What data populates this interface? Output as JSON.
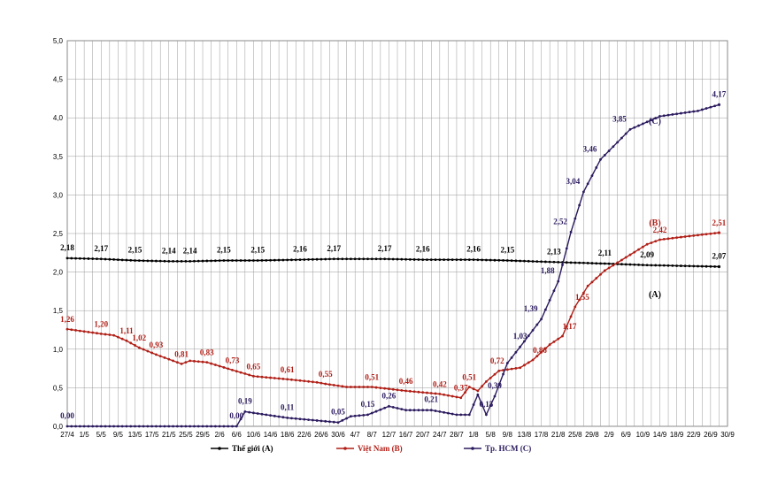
{
  "chart_data": {
    "type": "line",
    "title": "",
    "xlabel": "",
    "ylabel": "",
    "ylim": [
      0,
      5
    ],
    "y_ticks": [
      "0,0",
      "0,5",
      "1,0",
      "1,5",
      "2,0",
      "2,5",
      "3,0",
      "3,5",
      "4,0",
      "4,5",
      "5,0"
    ],
    "x_tick_labels": [
      "27/4",
      "1/5",
      "5/5",
      "9/5",
      "13/5",
      "17/5",
      "21/5",
      "25/5",
      "29/5",
      "2/6",
      "6/6",
      "10/6",
      "14/6",
      "18/6",
      "22/6",
      "26/6",
      "30/6",
      "4/7",
      "8/7",
      "12/7",
      "16/7",
      "20/7",
      "24/7",
      "28/7",
      "1/8",
      "5/8",
      "9/8",
      "13/8",
      "17/8",
      "21/8",
      "25/8",
      "29/8",
      "2/9",
      "6/9",
      "10/9",
      "14/9",
      "18/9",
      "22/9",
      "26/9",
      "30/9"
    ],
    "x_range_days": [
      0,
      156
    ],
    "grid": true,
    "legend_position": "bottom",
    "series": [
      {
        "name": "Thế giới (A)",
        "tag": "(A)",
        "color": "#000000",
        "points": [
          {
            "day": 0,
            "value": 2.18,
            "label": "2,18"
          },
          {
            "day": 8,
            "value": 2.17,
            "label": "2,17"
          },
          {
            "day": 16,
            "value": 2.15,
            "label": "2,15"
          },
          {
            "day": 24,
            "value": 2.14,
            "label": "2,14"
          },
          {
            "day": 29,
            "value": 2.14,
            "label": "2,14"
          },
          {
            "day": 37,
            "value": 2.15,
            "label": "2,15"
          },
          {
            "day": 45,
            "value": 2.15,
            "label": "2,15"
          },
          {
            "day": 55,
            "value": 2.16,
            "label": "2,16"
          },
          {
            "day": 63,
            "value": 2.17,
            "label": "2,17"
          },
          {
            "day": 75,
            "value": 2.17,
            "label": "2,17"
          },
          {
            "day": 84,
            "value": 2.16,
            "label": "2,16"
          },
          {
            "day": 96,
            "value": 2.16,
            "label": "2,16"
          },
          {
            "day": 104,
            "value": 2.15,
            "label": "2,15"
          },
          {
            "day": 115,
            "value": 2.13,
            "label": "2,13"
          },
          {
            "day": 127,
            "value": 2.11,
            "label": "2,11"
          },
          {
            "day": 137,
            "value": 2.09,
            "label": "2,09"
          },
          {
            "day": 154,
            "value": 2.07,
            "label": "2,07"
          }
        ]
      },
      {
        "name": "Việt Nam (B)",
        "tag": "(B)",
        "color": "#b01e16",
        "points": [
          {
            "day": 0,
            "value": 1.26,
            "label": "1,26"
          },
          {
            "day": 4,
            "value": 1.23,
            "label": ""
          },
          {
            "day": 8,
            "value": 1.2,
            "label": "1,20"
          },
          {
            "day": 11,
            "value": 1.18,
            "label": ""
          },
          {
            "day": 14,
            "value": 1.11,
            "label": "1,11"
          },
          {
            "day": 17,
            "value": 1.02,
            "label": "1,02"
          },
          {
            "day": 21,
            "value": 0.93,
            "label": "0,93"
          },
          {
            "day": 27,
            "value": 0.81,
            "label": "0,81"
          },
          {
            "day": 29,
            "value": 0.85,
            "label": ""
          },
          {
            "day": 33,
            "value": 0.83,
            "label": "0,83"
          },
          {
            "day": 39,
            "value": 0.73,
            "label": "0,73"
          },
          {
            "day": 44,
            "value": 0.65,
            "label": "0,65"
          },
          {
            "day": 52,
            "value": 0.61,
            "label": "0,61"
          },
          {
            "day": 59,
            "value": 0.57,
            "label": ""
          },
          {
            "day": 61,
            "value": 0.55,
            "label": "0,55"
          },
          {
            "day": 66,
            "value": 0.51,
            "label": ""
          },
          {
            "day": 72,
            "value": 0.51,
            "label": "0,51"
          },
          {
            "day": 80,
            "value": 0.46,
            "label": "0,46"
          },
          {
            "day": 88,
            "value": 0.42,
            "label": "0,42"
          },
          {
            "day": 93,
            "value": 0.37,
            "label": "0,37"
          },
          {
            "day": 95,
            "value": 0.51,
            "label": "0,51"
          },
          {
            "day": 97,
            "value": 0.46,
            "label": ""
          },
          {
            "day": 99,
            "value": 0.58,
            "label": ""
          },
          {
            "day": 102,
            "value": 0.72,
            "label": "0,72"
          },
          {
            "day": 107,
            "value": 0.76,
            "label": ""
          },
          {
            "day": 110,
            "value": 0.86,
            "label": "0,86"
          },
          {
            "day": 114,
            "value": 1.06,
            "label": ""
          },
          {
            "day": 117,
            "value": 1.17,
            "label": "1,17"
          },
          {
            "day": 120,
            "value": 1.55,
            "label": "1,55"
          },
          {
            "day": 123,
            "value": 1.82,
            "label": ""
          },
          {
            "day": 127,
            "value": 2.02,
            "label": ""
          },
          {
            "day": 132,
            "value": 2.19,
            "label": ""
          },
          {
            "day": 137,
            "value": 2.36,
            "label": ""
          },
          {
            "day": 140,
            "value": 2.42,
            "label": "2,42"
          },
          {
            "day": 146,
            "value": 2.46,
            "label": ""
          },
          {
            "day": 154,
            "value": 2.51,
            "label": "2,51"
          }
        ]
      },
      {
        "name": "Tp. HCM (C)",
        "tag": "(C)",
        "color": "#2b1a5e",
        "points": [
          {
            "day": 0,
            "value": 0.0,
            "label": "0,00"
          },
          {
            "day": 40,
            "value": 0.0,
            "label": "0,00"
          },
          {
            "day": 42,
            "value": 0.19,
            "label": "0,19"
          },
          {
            "day": 52,
            "value": 0.11,
            "label": "0,11"
          },
          {
            "day": 64,
            "value": 0.05,
            "label": "0,05"
          },
          {
            "day": 67,
            "value": 0.13,
            "label": ""
          },
          {
            "day": 71,
            "value": 0.15,
            "label": "0,15"
          },
          {
            "day": 76,
            "value": 0.26,
            "label": "0,26"
          },
          {
            "day": 80,
            "value": 0.21,
            "label": ""
          },
          {
            "day": 86,
            "value": 0.21,
            "label": "0,21"
          },
          {
            "day": 92,
            "value": 0.15,
            "label": ""
          },
          {
            "day": 95,
            "value": 0.15,
            "label": ""
          },
          {
            "day": 97,
            "value": 0.41,
            "label": ""
          },
          {
            "day": 99,
            "value": 0.15,
            "label": "0,15"
          },
          {
            "day": 101,
            "value": 0.39,
            "label": "0,39"
          },
          {
            "day": 104,
            "value": 0.82,
            "label": ""
          },
          {
            "day": 107,
            "value": 1.03,
            "label": "1,03"
          },
          {
            "day": 112,
            "value": 1.39,
            "label": "1,39"
          },
          {
            "day": 116,
            "value": 1.88,
            "label": "1,88"
          },
          {
            "day": 119,
            "value": 2.52,
            "label": "2,52"
          },
          {
            "day": 122,
            "value": 3.04,
            "label": "3,04"
          },
          {
            "day": 126,
            "value": 3.46,
            "label": "3,46"
          },
          {
            "day": 133,
            "value": 3.85,
            "label": "3,85"
          },
          {
            "day": 140,
            "value": 4.02,
            "label": ""
          },
          {
            "day": 149,
            "value": 4.09,
            "label": ""
          },
          {
            "day": 154,
            "value": 4.17,
            "label": "4,17"
          }
        ]
      }
    ]
  }
}
